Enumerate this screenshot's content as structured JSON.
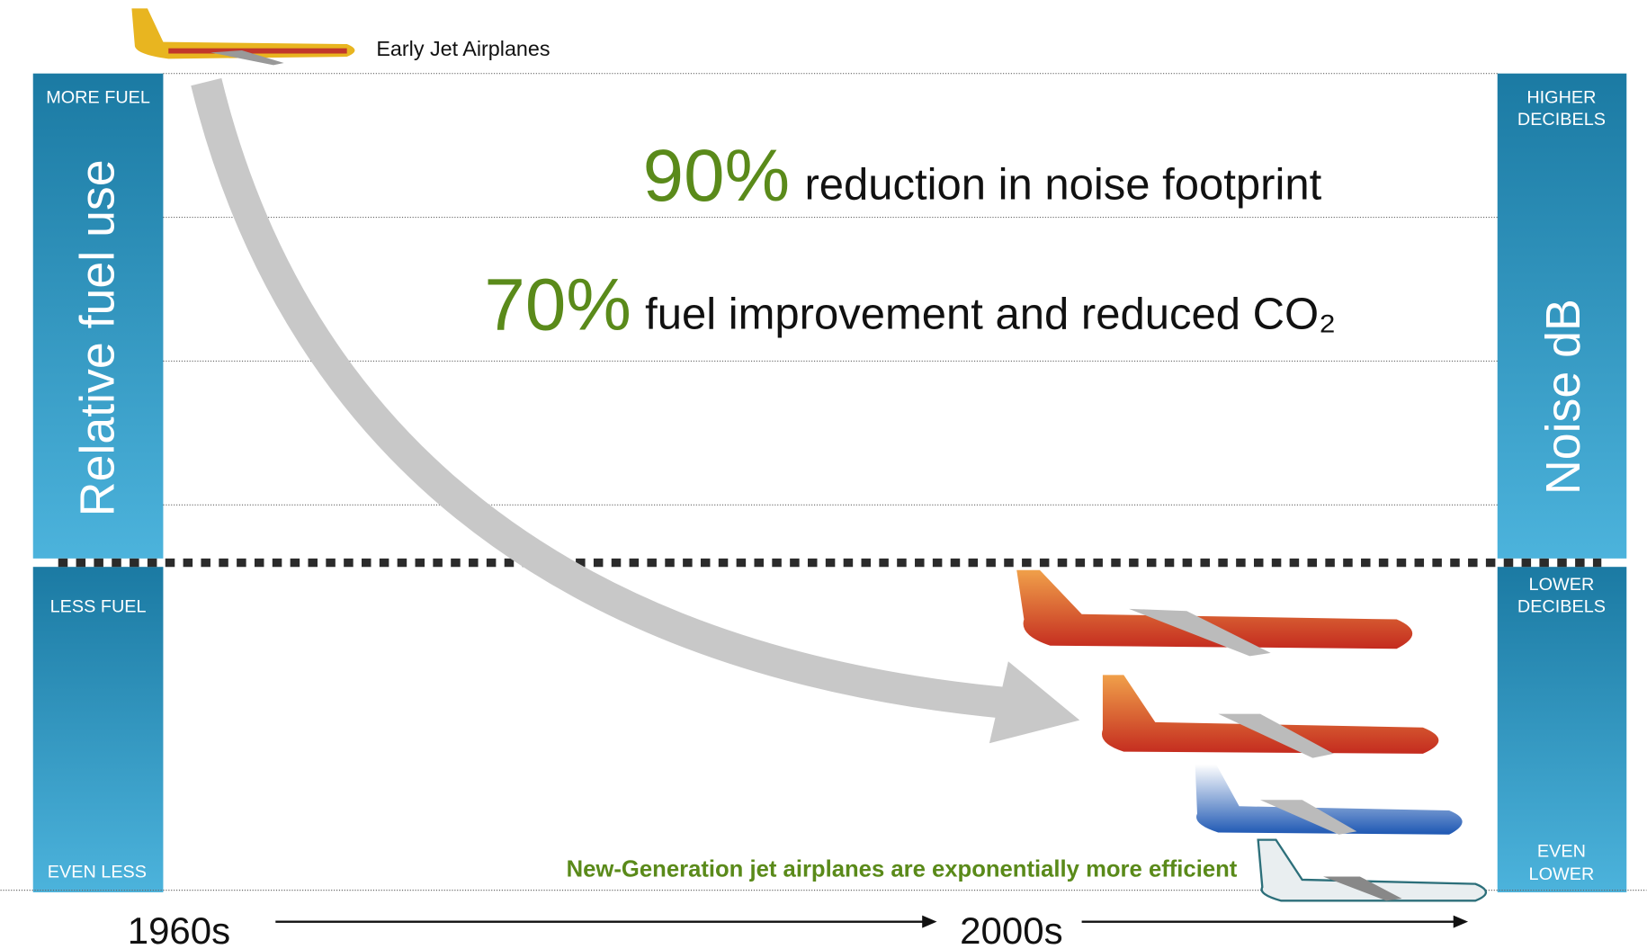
{
  "header": {
    "early_jets": "Early Jet Airplanes"
  },
  "left_axis": {
    "title": "Relative fuel use",
    "top": "MORE FUEL",
    "middle": "LESS FUEL",
    "bottom": "EVEN LESS"
  },
  "right_axis": {
    "title": "Noise dB",
    "top": [
      "HIGHER",
      "DECIBELS"
    ],
    "middle": [
      "LOWER",
      "DECIBELS"
    ],
    "bottom": [
      "EVEN",
      "LOWER"
    ]
  },
  "stats": [
    {
      "figure": "90%",
      "text": "reduction in noise footprint"
    },
    {
      "figure": "70%",
      "text": "fuel improvement and reduced CO₂"
    }
  ],
  "caption": "New-Generation jet airplanes are exponentially more efficient",
  "timeline": [
    "1960s",
    "2000s"
  ]
}
